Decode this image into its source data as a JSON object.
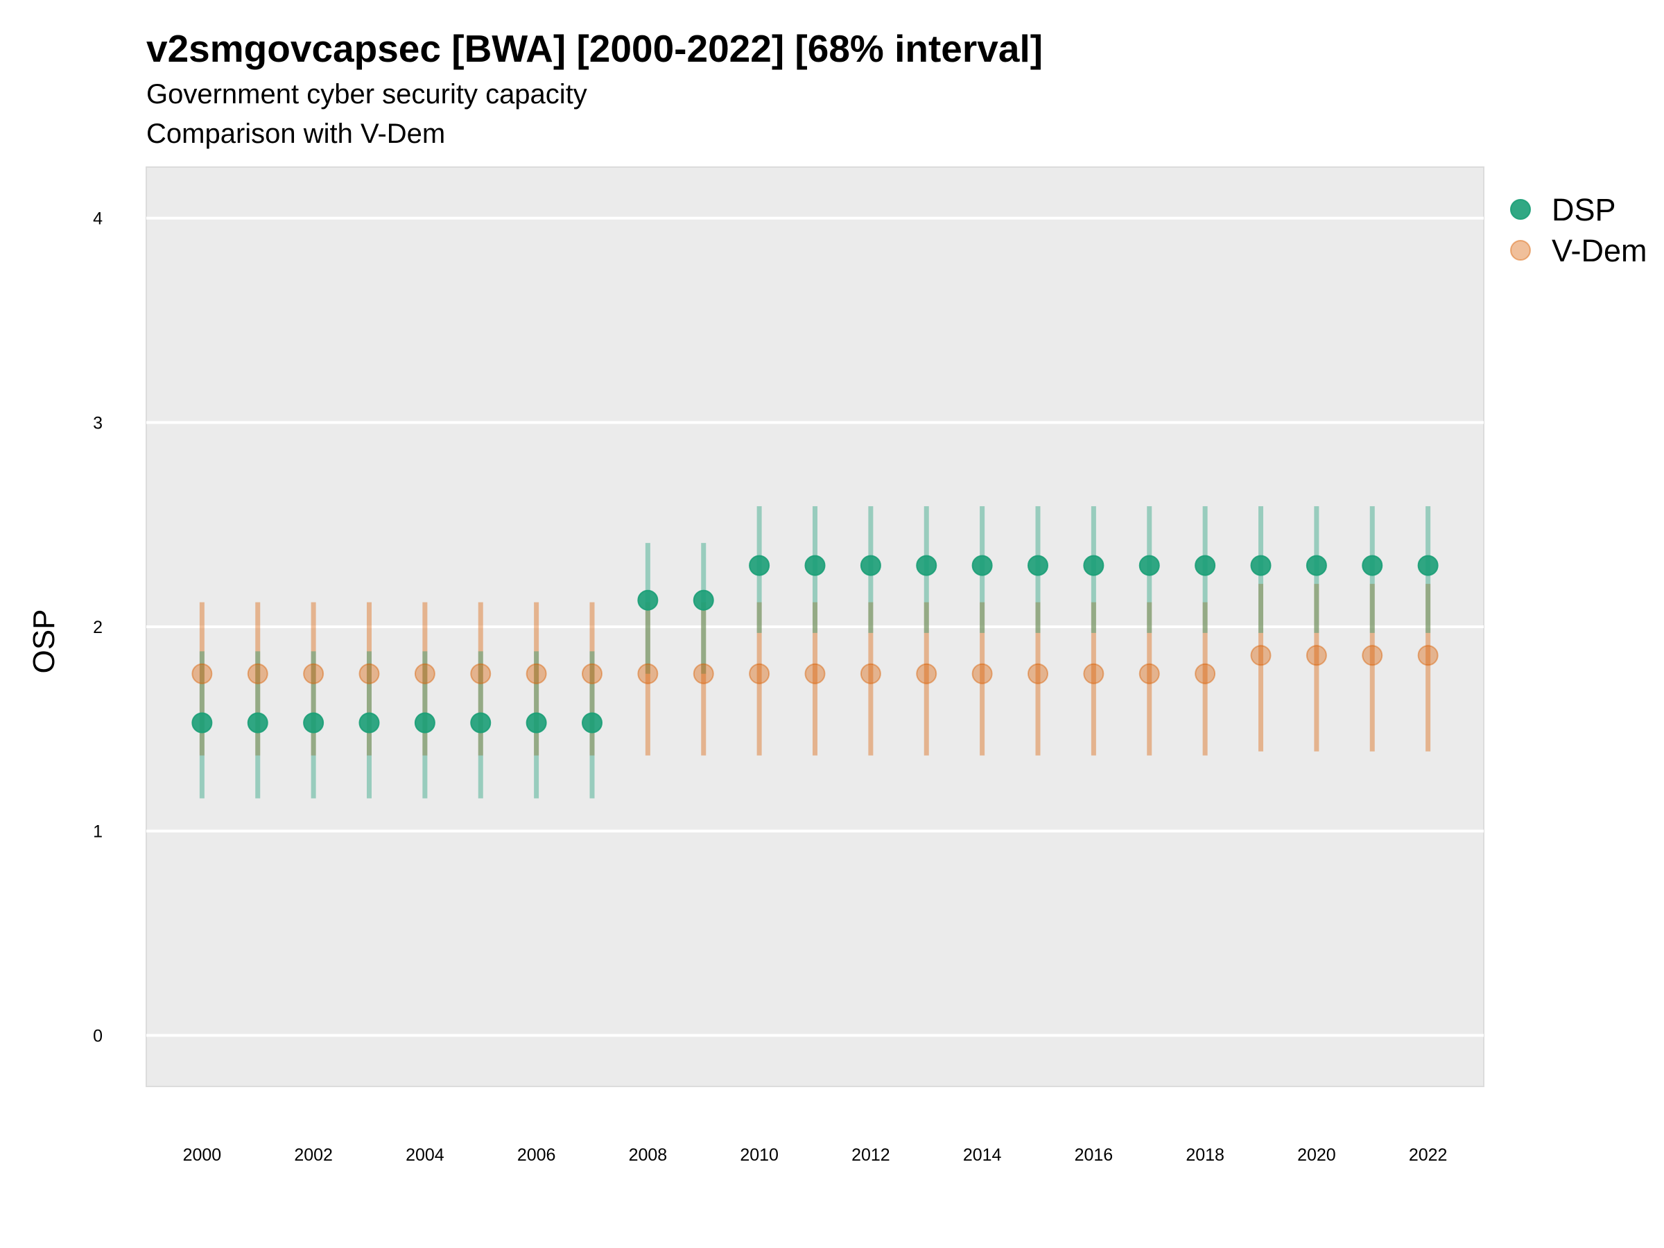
{
  "chart_data": {
    "type": "scatter",
    "title": "v2smgovcapsec [BWA] [2000-2022] [68% interval]",
    "subtitle": "Government cyber security capacity",
    "subtitle2": "Comparison with V-Dem",
    "xlabel": "",
    "ylabel": "OSP",
    "x": [
      2000,
      2001,
      2002,
      2003,
      2004,
      2005,
      2006,
      2007,
      2008,
      2009,
      2010,
      2011,
      2012,
      2013,
      2014,
      2015,
      2016,
      2017,
      2018,
      2019,
      2020,
      2021,
      2022
    ],
    "x_ticks": [
      "2000",
      "2002",
      "2004",
      "2006",
      "2008",
      "2010",
      "2012",
      "2014",
      "2016",
      "2018",
      "2020",
      "2022"
    ],
    "y_ticks": [
      "0",
      "1",
      "2",
      "3",
      "4"
    ],
    "ylim": [
      -0.25,
      4.25
    ],
    "xlim": [
      1999,
      2023
    ],
    "grid": true,
    "legend_position": "right",
    "series": [
      {
        "name": "DSP",
        "color": "#1b9e77",
        "values": [
          1.53,
          1.53,
          1.53,
          1.53,
          1.53,
          1.53,
          1.53,
          1.53,
          2.13,
          2.13,
          2.3,
          2.3,
          2.3,
          2.3,
          2.3,
          2.3,
          2.3,
          2.3,
          2.3,
          2.3,
          2.3,
          2.3,
          2.3
        ],
        "lower": [
          1.16,
          1.16,
          1.16,
          1.16,
          1.16,
          1.16,
          1.16,
          1.16,
          1.77,
          1.77,
          1.97,
          1.97,
          1.97,
          1.97,
          1.97,
          1.97,
          1.97,
          1.97,
          1.97,
          1.97,
          1.97,
          1.97,
          1.97
        ],
        "upper": [
          1.88,
          1.88,
          1.88,
          1.88,
          1.88,
          1.88,
          1.88,
          1.88,
          2.41,
          2.41,
          2.59,
          2.59,
          2.59,
          2.59,
          2.59,
          2.59,
          2.59,
          2.59,
          2.59,
          2.59,
          2.59,
          2.59,
          2.59
        ]
      },
      {
        "name": "V-Dem",
        "color": "#d95f02",
        "values": [
          1.77,
          1.77,
          1.77,
          1.77,
          1.77,
          1.77,
          1.77,
          1.77,
          1.77,
          1.77,
          1.77,
          1.77,
          1.77,
          1.77,
          1.77,
          1.77,
          1.77,
          1.77,
          1.77,
          1.86,
          1.86,
          1.86,
          1.86
        ],
        "lower": [
          1.37,
          1.37,
          1.37,
          1.37,
          1.37,
          1.37,
          1.37,
          1.37,
          1.37,
          1.37,
          1.37,
          1.37,
          1.37,
          1.37,
          1.37,
          1.37,
          1.37,
          1.37,
          1.37,
          1.39,
          1.39,
          1.39,
          1.39
        ],
        "upper": [
          2.12,
          2.12,
          2.12,
          2.12,
          2.12,
          2.12,
          2.12,
          2.12,
          2.12,
          2.12,
          2.12,
          2.12,
          2.12,
          2.12,
          2.12,
          2.12,
          2.12,
          2.12,
          2.12,
          2.21,
          2.21,
          2.21,
          2.21
        ]
      }
    ]
  }
}
